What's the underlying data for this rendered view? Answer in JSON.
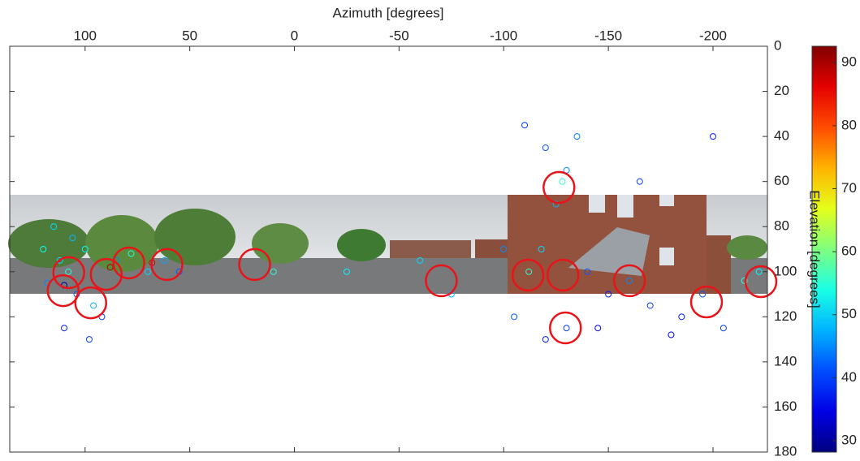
{
  "chart_data": {
    "type": "scatter",
    "xlabel": "Azimuth [degrees]",
    "colorbar_label": "Elevation [degrees]",
    "xlim": [
      136,
      -226
    ],
    "ylim": [
      180,
      0
    ],
    "xticks": [
      100,
      50,
      0,
      -50,
      -100,
      -150,
      -200
    ],
    "yticks": [
      0,
      20,
      40,
      60,
      80,
      100,
      120,
      140,
      160,
      180
    ],
    "clim": [
      28.2,
      92.6
    ],
    "cticks": [
      30,
      40,
      50,
      60,
      70,
      80,
      90
    ],
    "colormap": "jet",
    "points": {
      "x": [
        108,
        112,
        118,
        104,
        96,
        100,
        92,
        110,
        85,
        78,
        70,
        62,
        55,
        120,
        115,
        98,
        106,
        88,
        68,
        110,
        -112,
        -118,
        -125,
        -130,
        -120,
        -110,
        -135,
        -128,
        -140,
        -150,
        -160,
        -130,
        -120,
        -105,
        -145,
        -170,
        -185,
        -195,
        -215,
        -222,
        -205,
        -180,
        -100,
        -60,
        -75,
        -25,
        10,
        -165,
        -200
      ],
      "y": [
        100,
        95,
        105,
        110,
        115,
        90,
        120,
        125,
        95,
        92,
        100,
        95,
        100,
        90,
        80,
        130,
        85,
        98,
        96,
        106,
        100,
        90,
        70,
        55,
        45,
        35,
        40,
        60,
        100,
        110,
        104,
        125,
        130,
        120,
        125,
        115,
        120,
        110,
        104,
        100,
        125,
        128,
        90,
        95,
        110,
        100,
        100,
        60,
        40
      ],
      "c": [
        55,
        50,
        45,
        42,
        48,
        52,
        40,
        38,
        45,
        55,
        50,
        47,
        42,
        53,
        50,
        40,
        48,
        90,
        88,
        30,
        55,
        50,
        48,
        45,
        42,
        40,
        44,
        55,
        42,
        38,
        45,
        40,
        38,
        42,
        36,
        40,
        38,
        42,
        55,
        52,
        40,
        35,
        45,
        50,
        48,
        52,
        55,
        40,
        38
      ]
    },
    "peaks": {
      "color": "#e8141a",
      "x": [
        107.8,
        110.5,
        97.3,
        89.9,
        79.1,
        60.9,
        19.0,
        -70.2,
        -111.6,
        -126.4,
        -128.3,
        -129.5,
        -160.1,
        -196.9,
        -222.9
      ],
      "y": [
        100.4,
        108.4,
        113.8,
        101.2,
        96.1,
        96.8,
        96.8,
        104,
        101.5,
        62.6,
        101.5,
        124.9,
        104,
        113.4,
        104.4
      ]
    }
  }
}
